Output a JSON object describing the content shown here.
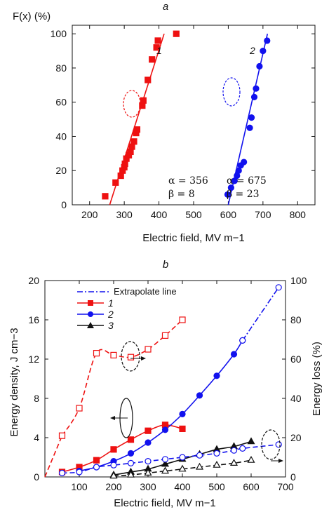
{
  "chart_data": [
    {
      "type": "scatter",
      "panel_label": "a",
      "title": "",
      "xlabel": "Electric field, MV m−1",
      "ylabel": "F(x) (%)",
      "xlim": [
        150,
        850
      ],
      "ylim": [
        0,
        105
      ],
      "xticks": [
        200,
        300,
        400,
        500,
        600,
        700,
        800
      ],
      "yticks": [
        0,
        20,
        40,
        60,
        80,
        100
      ],
      "colors": {
        "series1": "#ee1111",
        "series2": "#1111ee"
      },
      "series": [
        {
          "name": "1",
          "marker": "square",
          "x": [
            245,
            275,
            290,
            295,
            300,
            302,
            306,
            313,
            318,
            322,
            328,
            334,
            337,
            352,
            355,
            368,
            380,
            393,
            397,
            450
          ],
          "y": [
            5,
            13,
            17,
            20,
            22,
            24,
            27,
            29,
            31,
            34,
            37,
            42,
            44,
            58,
            61,
            73,
            85,
            92,
            96,
            100
          ],
          "fit_x": [
            258,
            415
          ],
          "fit_y": [
            0,
            100
          ],
          "weibull": {
            "alpha": "α = 356",
            "beta": "β = 8"
          }
        },
        {
          "name": "2",
          "marker": "circle",
          "x": [
            598,
            608,
            618,
            625,
            630,
            636,
            645,
            662,
            667,
            675,
            680,
            690,
            700,
            712
          ],
          "y": [
            6,
            10,
            14,
            17,
            20,
            23,
            25,
            45,
            51,
            63,
            68,
            81,
            90,
            96
          ],
          "fit_x": [
            600,
            713
          ],
          "fit_y": [
            0,
            100
          ],
          "weibull": {
            "alpha": "α = 675",
            "beta": "β = 23"
          }
        }
      ]
    },
    {
      "type": "line",
      "panel_label": "b",
      "title": "",
      "xlabel": "Electric field, MV m−1",
      "ylabel": "Energy density, J cm−3",
      "y2label": "Energy loss (%)",
      "xlim": [
        0,
        700
      ],
      "ylim": [
        0,
        20
      ],
      "y2lim": [
        0,
        100
      ],
      "xticks": [
        100,
        200,
        300,
        400,
        500,
        600,
        700
      ],
      "yticks": [
        0,
        4,
        8,
        12,
        16,
        20
      ],
      "y2ticks": [
        0,
        20,
        40,
        60,
        80,
        100
      ],
      "legend_position": "top-left",
      "legend": [
        {
          "label": "Extrapolate line",
          "style": "dash-dot",
          "color": "#1111ee"
        },
        {
          "label": "1",
          "marker": "square",
          "color": "#ee1111"
        },
        {
          "label": "2",
          "marker": "circle",
          "color": "#1111ee"
        },
        {
          "label": "3",
          "marker": "triangle",
          "color": "#111111"
        }
      ],
      "series": [
        {
          "name": "1",
          "axis": "left",
          "color": "#ee1111",
          "marker": "square",
          "x": [
            50,
            100,
            150,
            200,
            250,
            300,
            350,
            400
          ],
          "y": [
            0.5,
            1.0,
            1.7,
            2.8,
            3.8,
            4.7,
            5.3,
            4.9
          ]
        },
        {
          "name": "2",
          "axis": "left",
          "color": "#1111ee",
          "marker": "circle",
          "x": [
            100,
            150,
            200,
            250,
            300,
            350,
            400,
            450,
            500,
            550,
            575
          ],
          "y": [
            0.6,
            1.0,
            1.6,
            2.4,
            3.5,
            4.8,
            6.4,
            8.3,
            10.3,
            12.5,
            13.9
          ]
        },
        {
          "name": "2-extrapolated",
          "axis": "left",
          "color": "#1111ee",
          "marker": "open-circle",
          "x": [
            575,
            680
          ],
          "y": [
            13.9,
            19.3
          ]
        },
        {
          "name": "3",
          "axis": "left",
          "color": "#111111",
          "marker": "triangle",
          "x": [
            200,
            250,
            300,
            350,
            400,
            450,
            500,
            550,
            600
          ],
          "y": [
            0.2,
            0.5,
            0.8,
            1.3,
            1.8,
            2.3,
            2.8,
            3.1,
            3.6
          ]
        },
        {
          "name": "1-loss",
          "axis": "right",
          "color": "#ee1111",
          "marker": "open-square",
          "x": [
            50,
            100,
            150,
            200,
            250,
            300,
            350,
            400
          ],
          "y": [
            21,
            35,
            63,
            62,
            61,
            65,
            72,
            80
          ]
        },
        {
          "name": "2-loss",
          "axis": "right",
          "color": "#1111ee",
          "marker": "open-circle",
          "x": [
            50,
            100,
            150,
            200,
            250,
            300,
            350,
            400,
            450,
            500,
            550,
            575,
            680
          ],
          "y": [
            2,
            2.5,
            5,
            6,
            7,
            8,
            9,
            10,
            11,
            12,
            13.5,
            14.5,
            16.5
          ]
        },
        {
          "name": "3-loss",
          "axis": "right",
          "color": "#111111",
          "marker": "open-triangle",
          "x": [
            200,
            250,
            300,
            350,
            400,
            450,
            500,
            550,
            600
          ],
          "y": [
            0.5,
            1,
            2,
            3,
            4,
            5,
            6,
            7,
            8.5
          ]
        }
      ]
    }
  ]
}
